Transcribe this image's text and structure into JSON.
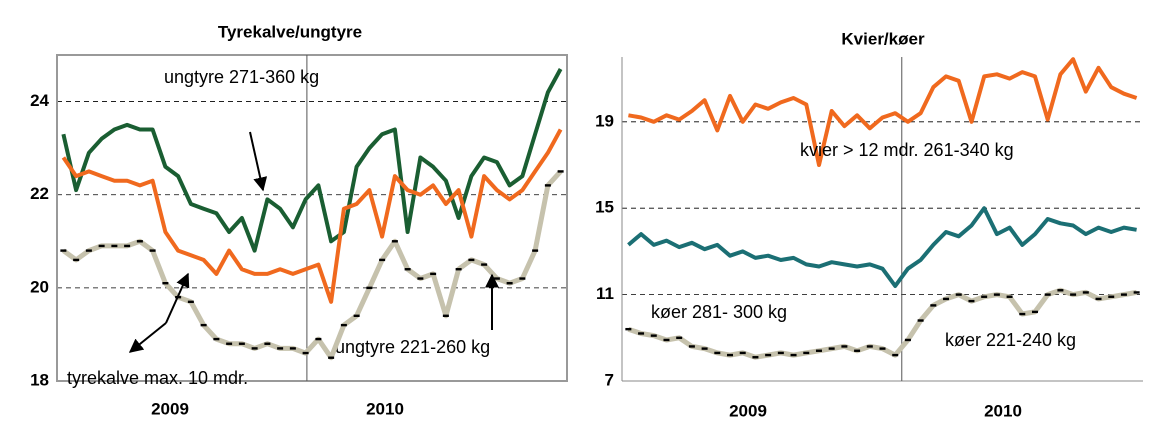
{
  "chart_data": [
    {
      "type": "line",
      "title": "Tyrekalve/ungtyre",
      "year_labels": [
        "2009",
        "2010"
      ],
      "ylim": [
        18,
        25
      ],
      "yticks": [
        18,
        20,
        22,
        24
      ],
      "grid": true,
      "series": [
        {
          "name": "ungtyre 271-360 kg",
          "color": "#1a5e32",
          "values": [
            23.3,
            22.1,
            22.9,
            23.2,
            23.4,
            23.5,
            23.4,
            23.4,
            22.6,
            22.4,
            21.8,
            21.7,
            21.6,
            21.2,
            21.5,
            20.8,
            21.9,
            21.7,
            21.3,
            21.9,
            22.2,
            21.0,
            21.2,
            22.6,
            23.0,
            23.3,
            23.4,
            21.2,
            22.8,
            22.6,
            22.3,
            21.5,
            22.4,
            22.8,
            22.7,
            22.2,
            22.4,
            23.3,
            24.2,
            24.7
          ]
        },
        {
          "name": "ungtyre 221-260 kg",
          "color": "#f0691e",
          "values": [
            22.8,
            22.4,
            22.5,
            22.4,
            22.3,
            22.3,
            22.2,
            22.3,
            21.2,
            20.8,
            20.7,
            20.6,
            20.3,
            20.8,
            20.4,
            20.3,
            20.3,
            20.4,
            20.3,
            20.4,
            20.5,
            19.7,
            21.7,
            21.8,
            22.1,
            21.1,
            22.4,
            22.1,
            22.0,
            22.2,
            21.8,
            22.1,
            21.1,
            22.4,
            22.1,
            21.9,
            22.1,
            22.5,
            22.9,
            23.4
          ]
        },
        {
          "name": "tyrekalve max. 10 mdr.",
          "color": "#c6c2ad",
          "values": [
            20.8,
            20.6,
            20.8,
            20.9,
            20.9,
            20.9,
            21.0,
            20.8,
            20.1,
            19.8,
            19.7,
            19.2,
            18.9,
            18.8,
            18.8,
            18.7,
            18.8,
            18.7,
            18.7,
            18.6,
            18.9,
            18.5,
            19.2,
            19.4,
            20.0,
            20.6,
            21.0,
            20.4,
            20.2,
            20.3,
            19.4,
            20.4,
            20.6,
            20.5,
            20.2,
            20.1,
            20.2,
            20.8,
            22.2,
            22.5
          ]
        }
      ]
    },
    {
      "type": "line",
      "title": "Kvier/køer",
      "year_labels": [
        "2009",
        "2010"
      ],
      "ylim": [
        7,
        22
      ],
      "yticks": [
        7,
        11,
        15,
        19
      ],
      "grid": true,
      "series": [
        {
          "name": "kvier > 12 mdr. 261-340 kg",
          "color": "#f0691e",
          "values": [
            19.3,
            19.2,
            19.0,
            19.3,
            19.1,
            19.5,
            20.0,
            18.6,
            20.2,
            19.0,
            19.8,
            19.6,
            19.9,
            20.1,
            19.8,
            17.0,
            19.5,
            18.8,
            19.3,
            18.7,
            19.2,
            19.4,
            19.0,
            19.4,
            20.6,
            21.1,
            20.9,
            19.0,
            21.1,
            21.2,
            21.0,
            21.3,
            21.1,
            19.1,
            21.2,
            21.9,
            20.4,
            21.5,
            20.6,
            20.3,
            20.1
          ]
        },
        {
          "name": "køer 281- 300 kg",
          "color": "#1b6f74",
          "values": [
            13.3,
            13.8,
            13.3,
            13.5,
            13.2,
            13.4,
            13.1,
            13.3,
            12.8,
            13.0,
            12.7,
            12.8,
            12.6,
            12.7,
            12.4,
            12.3,
            12.5,
            12.4,
            12.3,
            12.4,
            12.2,
            11.4,
            12.2,
            12.6,
            13.3,
            13.9,
            13.7,
            14.2,
            15.0,
            13.8,
            14.1,
            13.3,
            13.8,
            14.5,
            14.3,
            14.2,
            13.8,
            14.1,
            13.9,
            14.1,
            14.0
          ]
        },
        {
          "name": "køer 221-240 kg",
          "color": "#c6c2ad",
          "values": [
            9.4,
            9.2,
            9.1,
            8.9,
            9.0,
            8.6,
            8.5,
            8.3,
            8.2,
            8.3,
            8.1,
            8.2,
            8.3,
            8.2,
            8.3,
            8.4,
            8.5,
            8.6,
            8.4,
            8.6,
            8.5,
            8.2,
            8.9,
            9.8,
            10.5,
            10.8,
            11.0,
            10.7,
            10.9,
            11.0,
            10.9,
            10.1,
            10.2,
            11.0,
            11.2,
            11.0,
            11.1,
            10.8,
            10.9,
            11.0,
            11.1
          ]
        }
      ]
    }
  ]
}
